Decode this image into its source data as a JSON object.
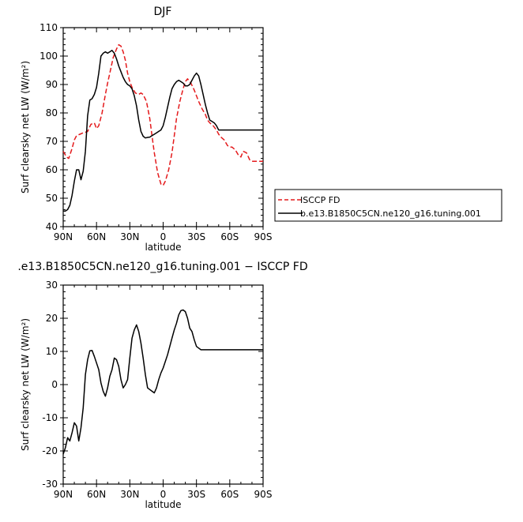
{
  "season_title": "DJF",
  "diff_title": ".e13.B1850C5CN.ne120_g16.tuning.001 − ISCCP FD",
  "chart_data": [
    {
      "type": "line",
      "title": "DJF",
      "xlabel": "latitude",
      "ylabel": "Surf clearsky net LW (W/m²)",
      "ylim": [
        40,
        110
      ],
      "xlim": [
        -90,
        90
      ],
      "x_direction": "north-to-south",
      "x_ticks": [
        {
          "value": -90,
          "label": "90N"
        },
        {
          "value": -60,
          "label": "60N"
        },
        {
          "value": -30,
          "label": "30N"
        },
        {
          "value": 0,
          "label": "0"
        },
        {
          "value": 30,
          "label": "30S"
        },
        {
          "value": 60,
          "label": "60S"
        },
        {
          "value": 90,
          "label": "90S"
        }
      ],
      "y_ticks": [
        40,
        50,
        60,
        70,
        80,
        90,
        100,
        110
      ],
      "legend_position": "right",
      "series": [
        {
          "name": "ISCCP FD",
          "color": "#e41a1c",
          "dash": "dashed",
          "x": [
            -90,
            -87,
            -85,
            -82,
            -80,
            -78,
            -75,
            -72,
            -70,
            -68,
            -65,
            -62,
            -60,
            -58,
            -55,
            -52,
            -50,
            -48,
            -45,
            -42,
            -40,
            -38,
            -36,
            -34,
            -32,
            -30,
            -28,
            -25,
            -22,
            -20,
            -18,
            -15,
            -12,
            -10,
            -8,
            -5,
            -2,
            0,
            2,
            5,
            8,
            10,
            12,
            15,
            18,
            20,
            22,
            25,
            28,
            30,
            32,
            35,
            38,
            40,
            42,
            45,
            48,
            50,
            52,
            55,
            58,
            60,
            62,
            65,
            68,
            70,
            72,
            75,
            78,
            80,
            82,
            85,
            87,
            90
          ],
          "y": [
            66.5,
            64.5,
            64.0,
            67.5,
            70.5,
            72.0,
            72.5,
            73.0,
            73.2,
            73.5,
            76.0,
            76.5,
            74.5,
            75.5,
            80.0,
            86.5,
            90.5,
            94.0,
            99.5,
            102.5,
            104.0,
            103.5,
            101.5,
            98.5,
            94.0,
            91.0,
            89.0,
            87.0,
            86.5,
            87.0,
            86.5,
            84.0,
            78.0,
            72.0,
            66.0,
            59.0,
            55.0,
            54.5,
            56.0,
            60.0,
            66.0,
            72.0,
            78.0,
            84.0,
            88.5,
            91.0,
            92.0,
            90.5,
            88.0,
            86.0,
            84.0,
            81.5,
            79.5,
            77.5,
            76.5,
            75.5,
            74.0,
            72.5,
            71.5,
            70.5,
            68.5,
            68.0,
            68.0,
            67.0,
            65.0,
            64.5,
            66.5,
            66.0,
            63.5,
            63.0,
            63.0,
            63.0,
            63.0,
            63.0
          ]
        },
        {
          "name": "b.e13.B1850C5CN.ne120_g16.tuning.001",
          "color": "#000000",
          "dash": "solid",
          "x": [
            -90,
            -88,
            -86,
            -84,
            -82,
            -80,
            -78,
            -76,
            -74,
            -72,
            -70,
            -68,
            -66,
            -64,
            -62,
            -60,
            -58,
            -56,
            -54,
            -52,
            -50,
            -48,
            -46,
            -44,
            -42,
            -40,
            -38,
            -36,
            -34,
            -32,
            -30,
            -28,
            -26,
            -24,
            -22,
            -20,
            -18,
            -16,
            -14,
            -12,
            -10,
            -8,
            -6,
            -4,
            -2,
            0,
            2,
            4,
            6,
            8,
            10,
            12,
            14,
            16,
            18,
            20,
            22,
            24,
            26,
            28,
            30,
            32,
            34,
            36,
            38,
            40,
            42,
            44,
            46,
            48,
            50,
            52,
            54,
            56,
            58,
            60,
            62,
            64,
            66,
            68,
            70,
            72,
            74,
            76,
            78,
            80,
            82,
            84,
            86,
            88,
            90
          ],
          "y": [
            45.5,
            45.5,
            46.0,
            47.5,
            51.0,
            56.0,
            60.0,
            60.0,
            56.5,
            59.5,
            66.5,
            79.0,
            84.5,
            85.0,
            86.5,
            89.0,
            94.0,
            100.0,
            101.0,
            101.5,
            101.0,
            101.5,
            102.0,
            101.0,
            99.0,
            96.5,
            94.5,
            92.5,
            91.0,
            90.0,
            89.5,
            88.5,
            86.0,
            82.5,
            77.5,
            73.5,
            71.8,
            71.2,
            71.4,
            71.5,
            72.0,
            72.5,
            73.0,
            73.5,
            74.0,
            75.5,
            78.5,
            82.0,
            85.5,
            88.5,
            90.0,
            91.0,
            91.5,
            91.0,
            90.5,
            89.5,
            89.5,
            90.0,
            91.5,
            93.0,
            94.0,
            93.0,
            90.0,
            86.5,
            83.0,
            80.0,
            77.5,
            77.0,
            76.5,
            75.5,
            74.0,
            74.0,
            74.0,
            74.0,
            74.0,
            74.0,
            74.0,
            74.0,
            74.0,
            74.0,
            74.0,
            74.0,
            74.0,
            74.0,
            74.0,
            74.0,
            74.0,
            74.0,
            74.0,
            74.0,
            74.0
          ]
        }
      ]
    },
    {
      "type": "line",
      "title": ".e13.B1850C5CN.ne120_g16.tuning.001 − ISCCP FD",
      "xlabel": "latitude",
      "ylabel": "Surf clearsky net LW (W/m²)",
      "ylim": [
        -30,
        30
      ],
      "xlim": [
        -90,
        90
      ],
      "x_direction": "north-to-south",
      "x_ticks": [
        {
          "value": -90,
          "label": "90N"
        },
        {
          "value": -60,
          "label": "60N"
        },
        {
          "value": -30,
          "label": "30N"
        },
        {
          "value": 0,
          "label": "0"
        },
        {
          "value": 30,
          "label": "30S"
        },
        {
          "value": 60,
          "label": "60S"
        },
        {
          "value": 90,
          "label": "90S"
        }
      ],
      "y_ticks": [
        -30,
        -20,
        -10,
        0,
        10,
        20,
        30
      ],
      "series": [
        {
          "color": "#000000",
          "dash": "solid",
          "x": [
            -90,
            -88,
            -86,
            -84,
            -82,
            -80,
            -78,
            -76,
            -74,
            -72,
            -70,
            -68,
            -66,
            -64,
            -62,
            -60,
            -58,
            -56,
            -54,
            -52,
            -50,
            -48,
            -46,
            -44,
            -42,
            -40,
            -38,
            -36,
            -34,
            -32,
            -30,
            -28,
            -26,
            -24,
            -22,
            -20,
            -18,
            -16,
            -14,
            -12,
            -10,
            -8,
            -6,
            -4,
            -2,
            0,
            2,
            4,
            6,
            8,
            10,
            12,
            14,
            16,
            18,
            20,
            22,
            24,
            26,
            28,
            30,
            32,
            34,
            36,
            38,
            40,
            42,
            44,
            46,
            48,
            50,
            52,
            54,
            56,
            58,
            60,
            62,
            64,
            66,
            68,
            70,
            72,
            74,
            76,
            78,
            80,
            82,
            84,
            86,
            88,
            90
          ],
          "y": [
            -21.0,
            -19.0,
            -16.0,
            -17.0,
            -14.5,
            -11.5,
            -12.5,
            -17.0,
            -13.0,
            -7.0,
            3.0,
            7.5,
            10.2,
            10.3,
            8.5,
            6.5,
            4.5,
            0.5,
            -2.0,
            -3.5,
            -1.0,
            2.5,
            4.5,
            8.0,
            7.5,
            5.5,
            1.5,
            -1.0,
            0.0,
            1.5,
            8.0,
            14.0,
            16.5,
            18.0,
            16.0,
            12.5,
            8.0,
            3.0,
            -1.0,
            -1.5,
            -2.0,
            -2.5,
            -1.0,
            1.5,
            3.5,
            5.0,
            7.0,
            9.0,
            11.5,
            14.0,
            16.5,
            18.5,
            21.0,
            22.3,
            22.5,
            22.0,
            20.0,
            17.0,
            16.0,
            13.5,
            11.5,
            11.0,
            10.5,
            10.5,
            10.5,
            10.5,
            10.5,
            10.5,
            10.5,
            10.5,
            10.5,
            10.5,
            10.5,
            10.5,
            10.5,
            10.5,
            10.5,
            10.5,
            10.5,
            10.5,
            10.5,
            10.5,
            10.5,
            10.5,
            10.5,
            10.5,
            10.5,
            10.5,
            10.5,
            10.5,
            10.5
          ]
        }
      ]
    }
  ]
}
